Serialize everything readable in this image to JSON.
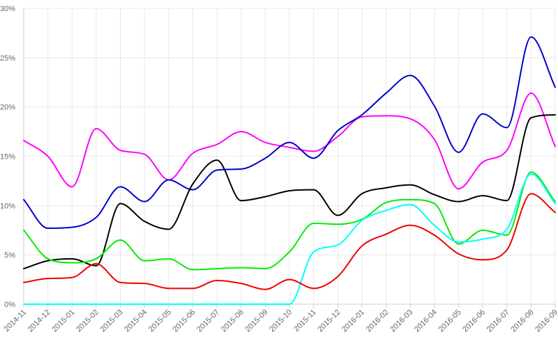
{
  "chart_data": {
    "type": "line",
    "title": "",
    "xlabel": "",
    "ylabel": "",
    "x": [
      "2014-11",
      "2014-12",
      "2015-01",
      "2015-02",
      "2015-03",
      "2015-04",
      "2015-05",
      "2015-06",
      "2015-07",
      "2015-08",
      "2015-09",
      "2015-10",
      "2015-11",
      "2015-12",
      "2016-01",
      "2016-02",
      "2016-03",
      "2016-04",
      "2016-05",
      "2016-06",
      "2016-07",
      "2016-08",
      "2016-09"
    ],
    "ylim": [
      0,
      30
    ],
    "yticks": [
      0,
      5,
      10,
      15,
      20,
      25,
      30
    ],
    "ytick_suffix": "%",
    "grid": true,
    "legend": "none",
    "series": [
      {
        "color": "#ff00ff",
        "values": [
          16.6,
          15.0,
          11.9,
          17.8,
          15.6,
          15.2,
          12.6,
          15.3,
          16.2,
          17.5,
          16.4,
          15.9,
          15.5,
          17.0,
          19.0,
          19.1,
          18.8,
          16.7,
          11.7,
          14.4,
          15.6,
          21.4,
          16.0
        ]
      },
      {
        "color": "#0000cc",
        "values": [
          10.6,
          7.7,
          7.8,
          8.8,
          11.9,
          10.4,
          12.6,
          11.6,
          13.6,
          13.7,
          14.8,
          16.4,
          14.8,
          17.6,
          19.2,
          21.4,
          23.2,
          20.1,
          15.4,
          19.3,
          17.9,
          27.1,
          22.0
        ]
      },
      {
        "color": "#000000",
        "values": [
          3.6,
          4.4,
          4.6,
          3.9,
          10.2,
          8.4,
          7.6,
          12.2,
          14.6,
          10.5,
          10.9,
          11.5,
          11.6,
          9.0,
          11.2,
          11.8,
          12.1,
          11.1,
          10.4,
          11.0,
          10.5,
          18.9,
          19.2
        ]
      },
      {
        "color": "#00ee00",
        "values": [
          7.5,
          4.6,
          4.2,
          4.6,
          6.5,
          4.4,
          4.6,
          3.5,
          3.6,
          3.7,
          3.6,
          5.3,
          8.2,
          8.1,
          8.6,
          10.3,
          10.6,
          10.2,
          6.1,
          7.5,
          7.0,
          13.4,
          10.4
        ]
      },
      {
        "color": "#00ffff",
        "values": [
          0,
          0,
          0,
          0,
          0,
          0,
          0,
          0,
          0,
          0,
          0,
          0,
          5.3,
          6.0,
          8.5,
          9.5,
          10.1,
          8.0,
          6.3,
          6.6,
          7.6,
          13.2,
          10.2
        ]
      },
      {
        "color": "#ee0000",
        "values": [
          2.2,
          2.6,
          2.7,
          4.1,
          2.2,
          2.1,
          1.6,
          1.6,
          2.4,
          2.1,
          1.5,
          2.5,
          1.6,
          2.8,
          5.9,
          7.1,
          8.0,
          7.0,
          5.1,
          4.5,
          5.5,
          11.2,
          9.3
        ]
      }
    ]
  }
}
